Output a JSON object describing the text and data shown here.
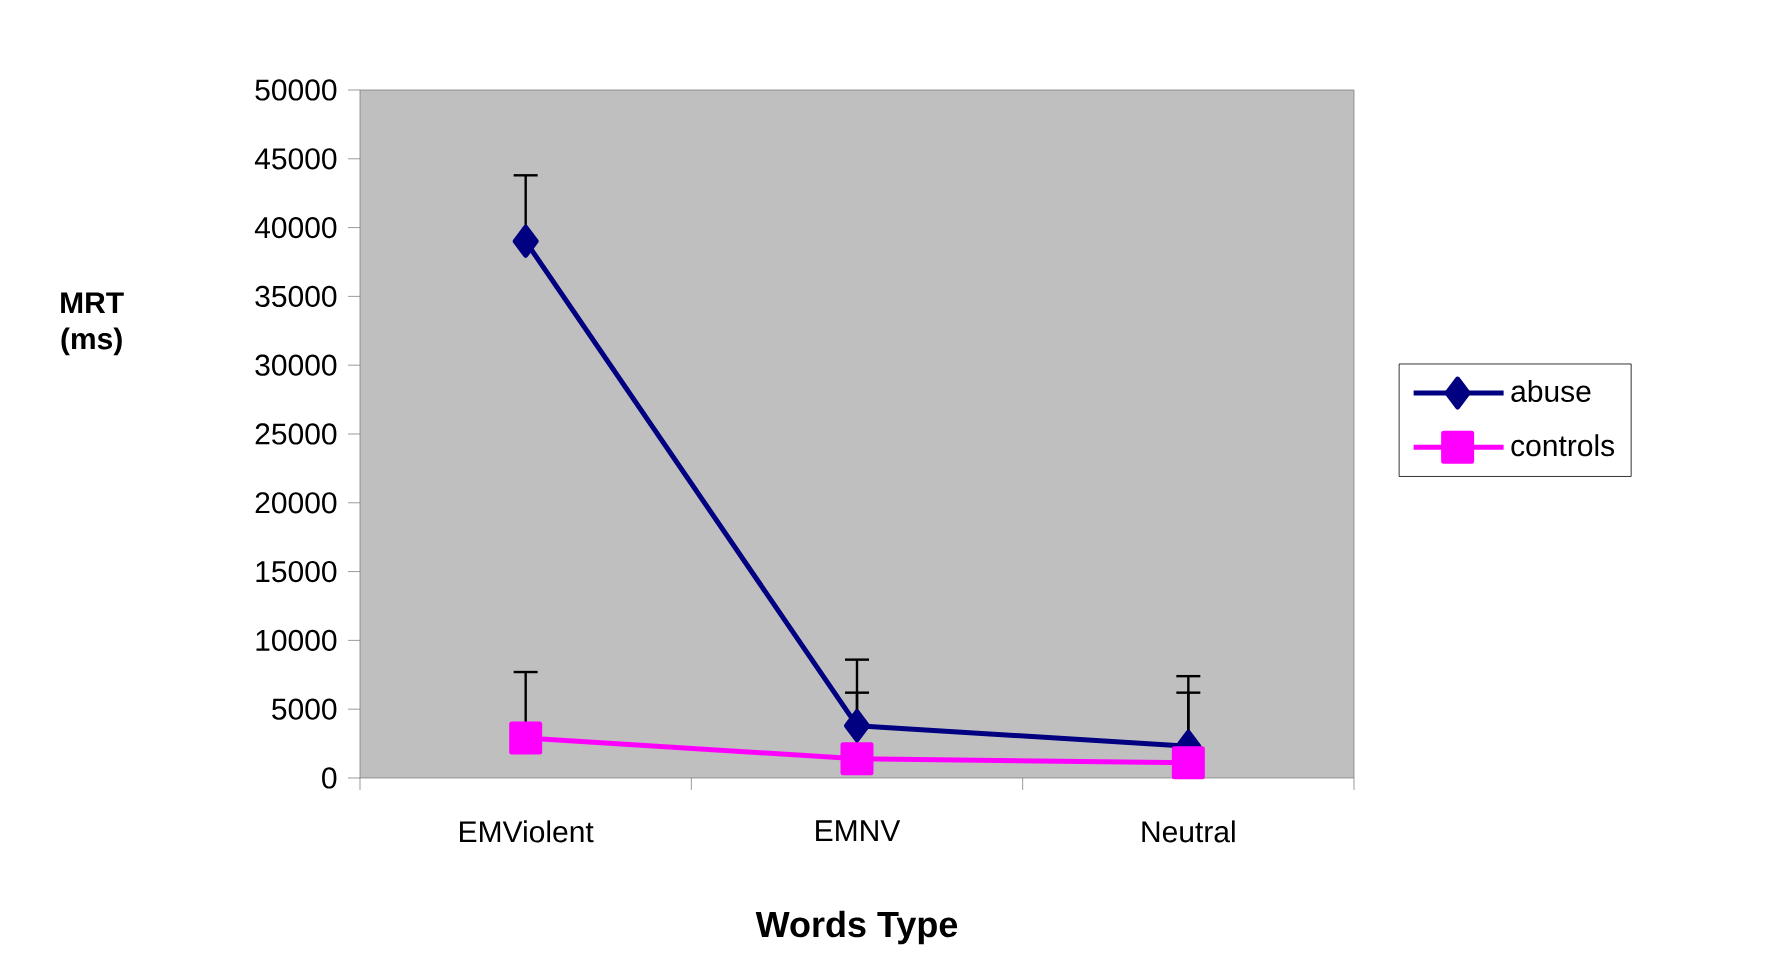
{
  "chart_data": {
    "type": "line",
    "xlabel": "Words Type",
    "ylabel": "MRT (ms)",
    "categories": [
      "EMViolent",
      "EMNV",
      "Neutral"
    ],
    "series": [
      {
        "name": "abuse",
        "color": "#000080",
        "marker": "diamond",
        "values": [
          39000,
          3800,
          2300
        ],
        "errors": [
          [
            39000,
            43800
          ],
          [
            3800,
            8600
          ],
          [
            2300,
            7400
          ]
        ]
      },
      {
        "name": "controls",
        "color": "#ff00ff",
        "marker": "square",
        "values": [
          2900,
          1400,
          1100
        ],
        "errors": [
          [
            2900,
            7700
          ],
          [
            1400,
            6200
          ],
          [
            1100,
            6200
          ]
        ]
      }
    ],
    "ylim": [
      0,
      50000
    ],
    "yticks": [
      0,
      5000,
      10000,
      15000,
      20000,
      25000,
      30000,
      35000,
      40000,
      45000,
      50000
    ],
    "grid": false,
    "legend": "right",
    "line_style": "solid"
  }
}
